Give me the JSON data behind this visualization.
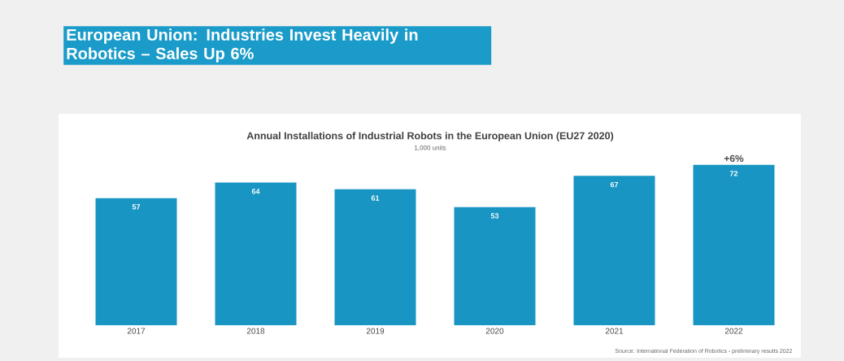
{
  "chart_data": {
    "type": "bar",
    "title": "European Union: Industries Invest Heavily in Robotics – Sales Up 6%",
    "subtitle": "Annual Installations of Industrial Robots in the European Union (EU27  2020)",
    "ylabel": "1,000 units",
    "categories": [
      "2017",
      "2018",
      "2019",
      "2020",
      "2021",
      "2022"
    ],
    "values": [
      57,
      64,
      61,
      53,
      67,
      72
    ],
    "color": "#1895c3",
    "tick_labels": "x",
    "data_labels": true,
    "annotations": [
      {
        "text": "+6%",
        "x": "2022",
        "y": 72
      },
      "Source: International Federation of Robotics - preliminary results 2022"
    ]
  }
}
